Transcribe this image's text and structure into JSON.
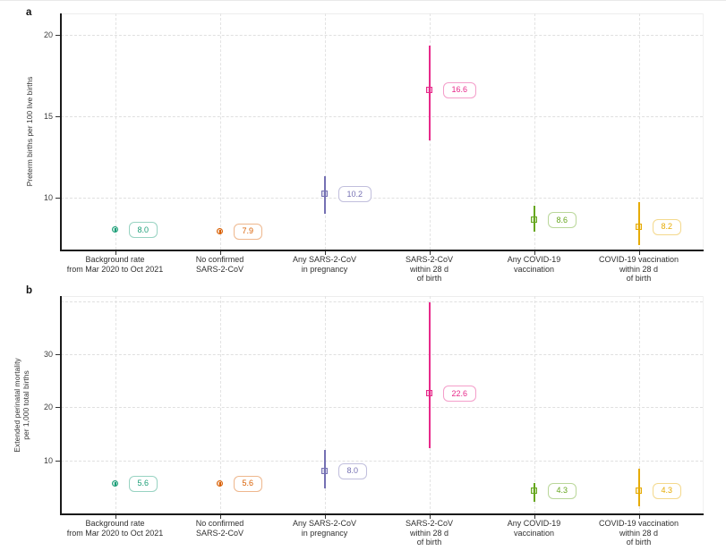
{
  "figure": {
    "background": "#ffffff",
    "panel_letters": [
      "a",
      "b"
    ]
  },
  "chart_data": [
    {
      "type": "scatter",
      "panel_label": "a",
      "title": "",
      "xlabel": "",
      "ylabel": "Preterm births per 100 live births",
      "ylabel_lines": [
        "Preterm births per 100 live births"
      ],
      "ylim": [
        6.8,
        21.3
      ],
      "yticks": [
        10,
        15,
        20
      ],
      "extra_gridlines": [],
      "grid": "dashed horizontal at y-ticks and dashed vertical at each category",
      "legend": "none",
      "categories": [
        "Background rate from Mar 2020 to Oct 2021",
        "No confirmed SARS-2-CoV",
        "Any SARS-2-CoV in pregnancy",
        "SARS-2-CoV within 28 d of birth",
        "Any COVID-19 vaccination",
        "COVID-19 vaccination within 28 d of birth"
      ],
      "category_label_lines": [
        [
          "Background rate",
          "from Mar 2020 to Oct 2021"
        ],
        [
          "No confirmed",
          "SARS-2-CoV"
        ],
        [
          "Any SARS-2-CoV",
          "in pregnancy"
        ],
        [
          "SARS-2-CoV",
          "within 28 d",
          "of birth"
        ],
        [
          "Any COVID-19",
          "vaccination"
        ],
        [
          "COVID-19 vaccination",
          "within 28 d",
          "of birth"
        ]
      ],
      "values": [
        8.0,
        7.9,
        10.2,
        16.6,
        8.6,
        8.2
      ],
      "value_labels": [
        "8.0",
        "7.9",
        "10.2",
        "16.6",
        "8.6",
        "8.2"
      ],
      "ci_low": [
        7.9,
        7.8,
        9.0,
        13.5,
        7.9,
        7.1
      ],
      "ci_high": [
        8.1,
        8.0,
        11.3,
        19.3,
        9.5,
        9.7
      ],
      "ci_note": "interval bars read from pixels (no numeric CI labels shown in figure)",
      "colors": [
        "#1b9e77",
        "#d95f02",
        "#7570b3",
        "#e7298a",
        "#66a61e",
        "#e6ab02"
      ],
      "markers": [
        "circle",
        "circle",
        "square",
        "square",
        "square",
        "square"
      ]
    },
    {
      "type": "scatter",
      "panel_label": "b",
      "title": "",
      "xlabel": "",
      "ylabel": "Extended perinatal mortality per 1,000 total births",
      "ylabel_lines": [
        "Extended perinatal mortality",
        "per 1,000 total births"
      ],
      "ylim": [
        0,
        41
      ],
      "yticks": [
        10,
        20,
        30
      ],
      "extra_gridlines": [
        40
      ],
      "grid": "dashed horizontal at y-ticks and dashed vertical at each category",
      "legend": "none",
      "categories": [
        "Background rate from Mar 2020 to Oct 2021",
        "No confirmed SARS-2-CoV",
        "Any SARS-2-CoV in pregnancy",
        "SARS-2-CoV within 28 d of birth",
        "Any COVID-19 vaccination",
        "COVID-19 vaccination within 28 d of birth"
      ],
      "category_label_lines": [
        [
          "Background rate",
          "from Mar 2020 to Oct 2021"
        ],
        [
          "No confirmed",
          "SARS-2-CoV"
        ],
        [
          "Any SARS-2-CoV",
          "in pregnancy"
        ],
        [
          "SARS-2-CoV",
          "within 28 d",
          "of birth"
        ],
        [
          "Any COVID-19",
          "vaccination"
        ],
        [
          "COVID-19 vaccination",
          "within 28 d",
          "of birth"
        ]
      ],
      "values": [
        5.6,
        5.6,
        8.0,
        22.6,
        4.3,
        4.3
      ],
      "value_labels": [
        "5.6",
        "5.6",
        "8.0",
        "22.6",
        "4.3",
        "4.3"
      ],
      "ci_low": [
        5.3,
        5.3,
        4.8,
        12.3,
        2.2,
        1.3
      ],
      "ci_high": [
        5.9,
        5.9,
        12.0,
        39.8,
        5.8,
        8.4
      ],
      "ci_note": "interval bars read from pixels (no numeric CI labels shown in figure)",
      "colors": [
        "#1b9e77",
        "#d95f02",
        "#7570b3",
        "#e7298a",
        "#66a61e",
        "#e6ab02"
      ],
      "markers": [
        "circle",
        "circle",
        "square",
        "square",
        "square",
        "square"
      ]
    }
  ]
}
